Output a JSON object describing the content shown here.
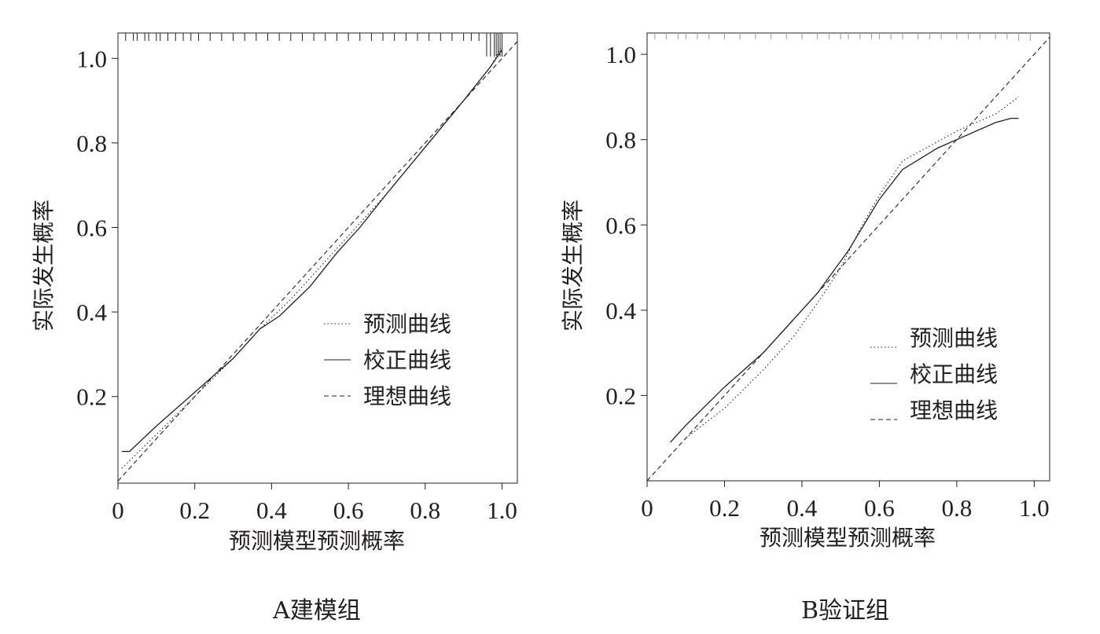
{
  "chart_data": [
    {
      "type": "line",
      "panel": "A",
      "caption": "A建模组",
      "xlabel": "预测模型预测概率",
      "ylabel": "实际发生概率",
      "xlim": [
        0,
        1.04
      ],
      "ylim": [
        -0.005,
        1.06
      ],
      "x_ticks": [
        0,
        0.2,
        0.4,
        0.6,
        0.8,
        1.0
      ],
      "x_tick_labels": [
        "0",
        "0.2",
        "0.4",
        "0.6",
        "0.8",
        "1.0"
      ],
      "y_ticks": [
        0.2,
        0.4,
        0.6,
        0.8,
        1.0
      ],
      "y_tick_labels": [
        "0.2",
        "0.4",
        "0.6",
        "0.8",
        "1.0"
      ],
      "legend_position": "center-right",
      "rug": [
        0.02,
        0.04,
        0.05,
        0.07,
        0.08,
        0.1,
        0.11,
        0.13,
        0.15,
        0.17,
        0.19,
        0.21,
        0.24,
        0.27,
        0.3,
        0.33,
        0.36,
        0.39,
        0.42,
        0.45,
        0.48,
        0.51,
        0.54,
        0.57,
        0.6,
        0.63,
        0.66,
        0.69,
        0.72,
        0.75,
        0.78,
        0.81,
        0.84,
        0.87,
        0.9,
        0.92,
        0.94,
        0.96,
        0.97,
        0.98,
        0.985,
        0.99,
        0.995,
        1.0
      ],
      "series": [
        {
          "name": "预测曲线",
          "style": "dotted",
          "x": [
            0.01,
            0.1,
            0.2,
            0.3,
            0.37,
            0.45,
            0.55,
            0.62,
            0.7,
            0.8,
            0.9,
            0.97,
            1.0
          ],
          "y": [
            0.03,
            0.11,
            0.2,
            0.29,
            0.36,
            0.43,
            0.53,
            0.6,
            0.68,
            0.79,
            0.9,
            0.98,
            1.03
          ]
        },
        {
          "name": "校正曲线",
          "style": "solid",
          "x": [
            0.01,
            0.03,
            0.1,
            0.2,
            0.3,
            0.37,
            0.42,
            0.5,
            0.57,
            0.63,
            0.7,
            0.8,
            0.9,
            0.97,
            1.0
          ],
          "y": [
            0.07,
            0.07,
            0.13,
            0.21,
            0.29,
            0.36,
            0.39,
            0.46,
            0.54,
            0.6,
            0.68,
            0.79,
            0.9,
            0.98,
            1.02
          ]
        },
        {
          "name": "理想曲线",
          "style": "dashed",
          "x": [
            0.0,
            1.04
          ],
          "y": [
            0.0,
            1.04
          ]
        }
      ]
    },
    {
      "type": "line",
      "panel": "B",
      "caption": "B验证组",
      "xlabel": "预测模型预测概率",
      "ylabel": "实际发生概率",
      "xlim": [
        0,
        1.04
      ],
      "ylim": [
        0.0,
        1.05
      ],
      "x_ticks": [
        0,
        0.2,
        0.4,
        0.6,
        0.8,
        1.0
      ],
      "x_tick_labels": [
        "0",
        "0.2",
        "0.4",
        "0.6",
        "0.8",
        "1.0"
      ],
      "y_ticks": [
        0.2,
        0.4,
        0.6,
        0.8,
        1.0
      ],
      "y_tick_labels": [
        "0.2",
        "0.4",
        "0.6",
        "0.8",
        "1.0"
      ],
      "legend_position": "center-right",
      "rug": [
        0.02,
        0.05,
        0.08,
        0.1,
        0.13,
        0.16,
        0.2,
        0.24,
        0.28,
        0.32,
        0.36,
        0.4,
        0.44,
        0.47,
        0.5,
        0.52,
        0.55,
        0.58,
        0.6,
        0.63,
        0.66,
        0.7,
        0.73,
        0.76,
        0.8,
        0.83,
        0.86,
        0.9,
        0.93,
        0.96,
        0.99
      ],
      "series": [
        {
          "name": "预测曲线",
          "style": "dotted",
          "x": [
            0.1,
            0.2,
            0.3,
            0.38,
            0.45,
            0.5,
            0.55,
            0.6,
            0.66,
            0.8,
            0.9,
            0.96
          ],
          "y": [
            0.1,
            0.17,
            0.26,
            0.34,
            0.43,
            0.5,
            0.59,
            0.67,
            0.75,
            0.82,
            0.86,
            0.9
          ]
        },
        {
          "name": "校正曲线",
          "style": "solid",
          "x": [
            0.06,
            0.1,
            0.2,
            0.3,
            0.38,
            0.44,
            0.48,
            0.52,
            0.56,
            0.6,
            0.66,
            0.75,
            0.8,
            0.9,
            0.94,
            0.96
          ],
          "y": [
            0.09,
            0.13,
            0.22,
            0.3,
            0.38,
            0.44,
            0.49,
            0.54,
            0.6,
            0.66,
            0.73,
            0.78,
            0.8,
            0.84,
            0.85,
            0.85
          ]
        },
        {
          "name": "理想曲线",
          "style": "dashed",
          "x": [
            0.0,
            1.04
          ],
          "y": [
            0.0,
            1.04
          ]
        }
      ]
    }
  ]
}
